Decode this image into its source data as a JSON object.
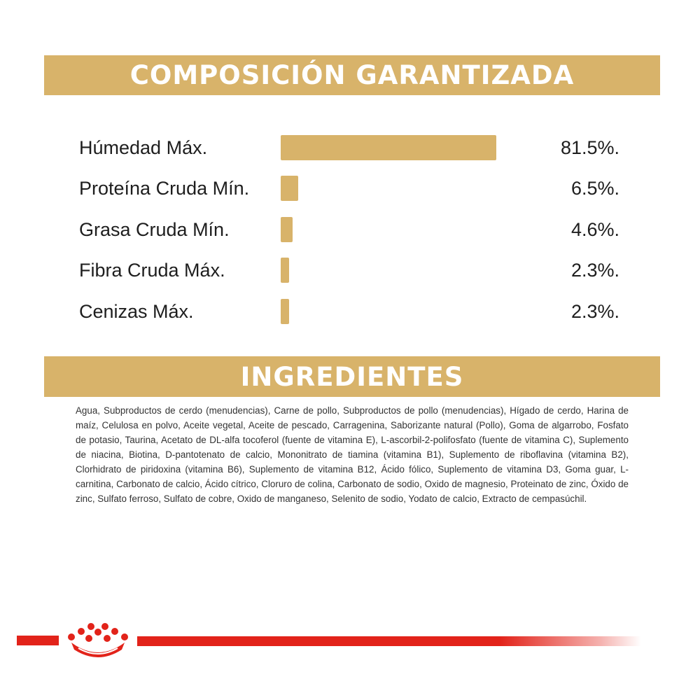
{
  "composition": {
    "title": "COMPOSICIÓN GARANTIZADA",
    "rows": [
      {
        "label": "Húmedad Máx.",
        "value": "81.5%.",
        "percent": 81.5
      },
      {
        "label": "Proteína Cruda Mín.",
        "value": "6.5%.",
        "percent": 6.5
      },
      {
        "label": "Grasa Cruda Mín.",
        "value": "4.6%.",
        "percent": 4.6
      },
      {
        "label": "Fibra Cruda Máx.",
        "value": "2.3%.",
        "percent": 2.3
      },
      {
        "label": "Cenizas Máx.",
        "value": "2.3%.",
        "percent": 2.3
      }
    ]
  },
  "ingredients": {
    "title": "INGREDIENTES",
    "text": "Agua, Subproductos de cerdo (menudencias), Carne de pollo, Subproductos de pollo (menudencias), Hígado de cerdo, Harina de maíz, Celulosa en polvo, Aceite vegetal, Aceite de pescado, Carragenina, Saborizante natural (Pollo), Goma de algarrobo, Fosfato de potasio, Taurina, Acetato de DL-alfa tocoferol (fuente de vitamina E), L-ascorbil-2-polifosfato (fuente de vitamina C), Suplemento de niacina, Biotina, D-pantotenato de calcio, Mononitrato de tiamina (vitamina B1), Suplemento de riboflavina (vitamina B2), Clorhidrato de piridoxina (vitamina B6), Suplemento de vitamina B12, Ácido fólico, Suplemento de vitamina D3, Goma guar, L-carnitina, Carbonato de calcio, Ácido cítrico, Cloruro de colina, Carbonato de sodio, Oxido de magnesio, Proteinato de zinc, Óxido de zinc, Sulfato ferroso, Sulfato de cobre, Oxido de manganeso, Selenito de sodio, Yodato de calcio, Extracto de cempasúchil."
  },
  "colors": {
    "gold": "#d8b36a",
    "brand_red": "#e2231a"
  },
  "icons": {
    "logo": "royal-crown-icon"
  }
}
